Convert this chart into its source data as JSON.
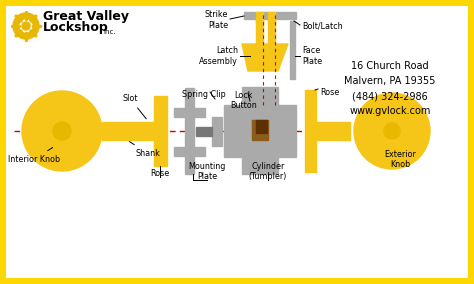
{
  "bg_color": "#ffffff",
  "border_color": "#FFD700",
  "colors": {
    "yellow": "#F5C518",
    "gold": "#E8B800",
    "gray": "#AAAAAA",
    "dark_gray": "#777777",
    "brown": "#8B5C1A",
    "dark_brown": "#5C3000",
    "red_dash": "#CC0000",
    "black": "#000000",
    "white": "#ffffff"
  },
  "address": [
    "16 Church Road",
    "Malvern, PA 19355",
    "(484) 324-2986",
    "www.gvlock.com"
  ],
  "labels": {
    "interior_knob": "Interior Knob",
    "shank": "Shank",
    "slot": "Slot",
    "rose_left": "Rose",
    "mounting_plate": "Mounting\nPlate",
    "spring_clip": "Spring Clip",
    "lock_button": "Lock\nButton",
    "latch_assembly": "Latch\nAssembly",
    "strike_plate": "Strike\nPlate",
    "bolt_latch": "Bolt/Latch",
    "face_plate": "Face\nPlate",
    "rose_right": "Rose",
    "cylinder": "Cylinder\n(Tumbler)",
    "exterior_knob": "Exterior\nKnob"
  }
}
